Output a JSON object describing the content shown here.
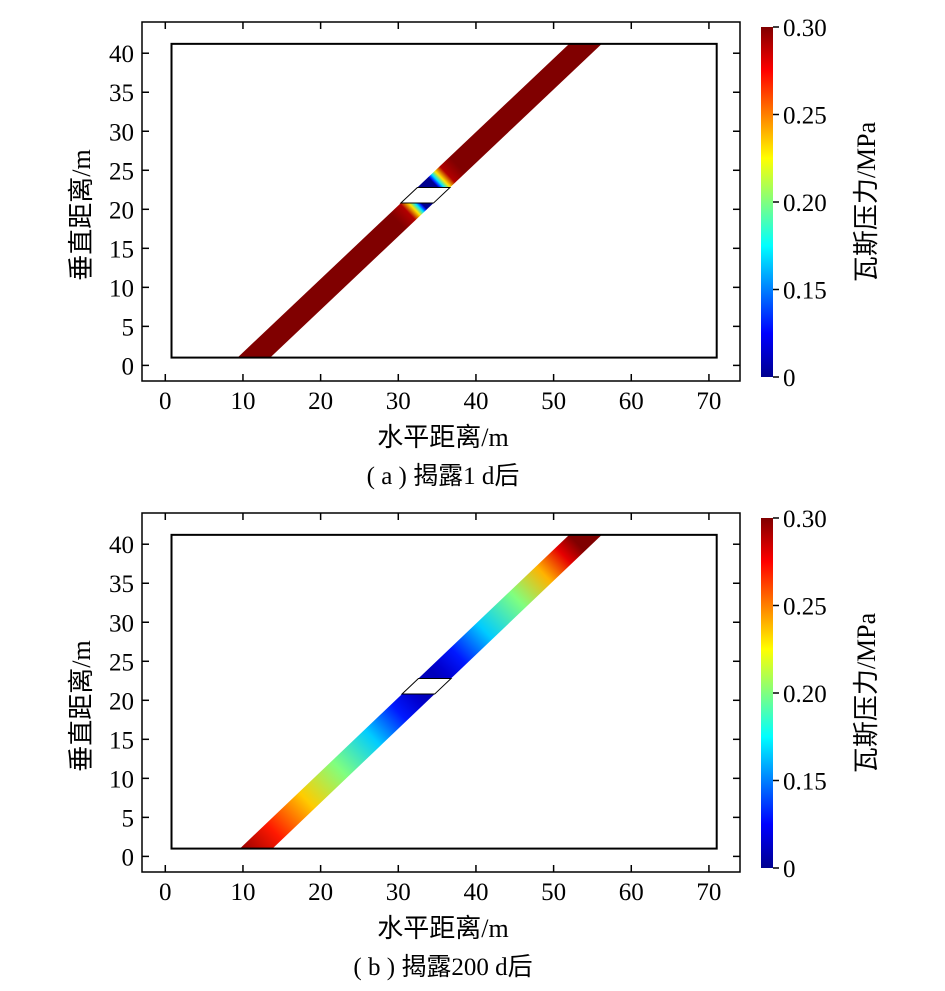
{
  "chart_data": [
    {
      "type": "heatmap",
      "caption": "( a ) 揭露1 d后",
      "xlabel": "水平距离/m",
      "ylabel": "垂直距离/m",
      "xlim": [
        -3,
        74
      ],
      "ylim": [
        -2,
        44
      ],
      "xticks": [
        "0",
        "10",
        "20",
        "30",
        "40",
        "50",
        "60",
        "70"
      ],
      "yticks": [
        "0",
        "5",
        "10",
        "15",
        "20",
        "25",
        "30",
        "35",
        "40"
      ],
      "colorbar": {
        "label": "瓦斯压力/MPa",
        "ticks": [
          "0.30",
          "0.25",
          "0.20",
          "0.15",
          "0"
        ],
        "range_min": 0.1,
        "range_max": 0.3
      },
      "domain_box": {
        "x": [
          0.8,
          71
        ],
        "y": [
          1,
          41.2
        ]
      },
      "seam": {
        "bottom": [
          9.3,
          13.5
        ],
        "top": [
          52,
          56.2
        ],
        "y_range": [
          1,
          41.2
        ],
        "opening_y": [
          20.8,
          22.8
        ]
      },
      "pressure_profile": [
        [
          0.0,
          0.3
        ],
        [
          0.46,
          0.3
        ],
        [
          0.49,
          0.29
        ],
        [
          0.505,
          0.23
        ],
        [
          0.515,
          0.17
        ],
        [
          0.522,
          0.13
        ],
        [
          0.525,
          0.1
        ],
        [
          0.575,
          0.1
        ],
        [
          0.578,
          0.13
        ],
        [
          0.585,
          0.17
        ],
        [
          0.595,
          0.23
        ],
        [
          0.61,
          0.29
        ],
        [
          0.64,
          0.3
        ],
        [
          1.0,
          0.3
        ]
      ]
    },
    {
      "type": "heatmap",
      "caption": "( b ) 揭露200 d后",
      "xlabel": "水平距离/m",
      "ylabel": "垂直距离/m",
      "xlim": [
        -3,
        74
      ],
      "ylim": [
        -2,
        44
      ],
      "xticks": [
        "0",
        "10",
        "20",
        "30",
        "40",
        "50",
        "60",
        "70"
      ],
      "yticks": [
        "0",
        "5",
        "10",
        "15",
        "20",
        "25",
        "30",
        "35",
        "40"
      ],
      "colorbar": {
        "label": "瓦斯压力/MPa",
        "ticks": [
          "0.30",
          "0.25",
          "0.20",
          "0.15",
          "0"
        ],
        "range_min": 0.1,
        "range_max": 0.3
      },
      "domain_box": {
        "x": [
          0.8,
          71
        ],
        "y": [
          1,
          41.2
        ]
      },
      "seam": {
        "bottom": [
          9.6,
          13.8
        ],
        "top": [
          52,
          56.2
        ],
        "y_range": [
          1,
          41.2
        ],
        "opening_y": [
          20.8,
          22.8
        ]
      },
      "pressure_profile": [
        [
          0.0,
          0.295
        ],
        [
          0.08,
          0.27
        ],
        [
          0.18,
          0.235
        ],
        [
          0.28,
          0.2
        ],
        [
          0.38,
          0.165
        ],
        [
          0.46,
          0.13
        ],
        [
          0.505,
          0.115
        ],
        [
          0.525,
          0.11
        ],
        [
          0.575,
          0.11
        ],
        [
          0.595,
          0.115
        ],
        [
          0.64,
          0.13
        ],
        [
          0.72,
          0.165
        ],
        [
          0.82,
          0.2
        ],
        [
          0.9,
          0.24
        ],
        [
          0.96,
          0.28
        ],
        [
          1.0,
          0.3
        ]
      ]
    }
  ]
}
